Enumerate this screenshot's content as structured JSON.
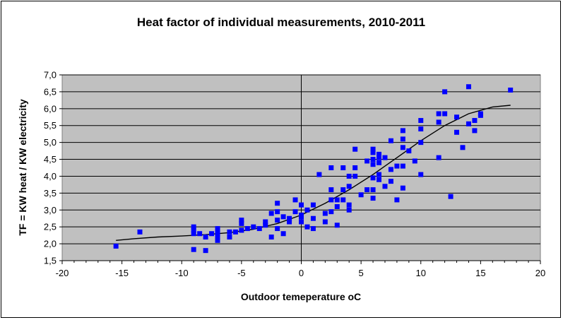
{
  "chart_data": {
    "type": "scatter",
    "title": "Heat factor of individual measurements, 2010-2011",
    "xlabel": "Outdoor temeperature oC",
    "ylabel": "TF = KW heat / KW electricity",
    "xlim": [
      -20,
      20
    ],
    "ylim": [
      1.5,
      7.0
    ],
    "x_ticks": [
      "-20",
      "-15",
      "-10",
      "-5",
      "0",
      "5",
      "10",
      "15",
      "20"
    ],
    "y_ticks": [
      "1,5",
      "2,0",
      "2,5",
      "3,0",
      "3,5",
      "4,0",
      "4,5",
      "5,0",
      "5,5",
      "6,0",
      "6,5",
      "7,0"
    ],
    "grid": true,
    "plot_background": "#c0c0c0",
    "marker_color": "#0000ff",
    "trend_color": "#000000",
    "points": [
      [
        -15.5,
        1.93
      ],
      [
        -13.5,
        2.35
      ],
      [
        -9,
        2.5
      ],
      [
        -9,
        2.4
      ],
      [
        -9,
        2.3
      ],
      [
        -9,
        1.83
      ],
      [
        -8.5,
        2.3
      ],
      [
        -8,
        2.2
      ],
      [
        -8,
        1.8
      ],
      [
        -7.5,
        2.3
      ],
      [
        -7,
        2.45
      ],
      [
        -7,
        2.4
      ],
      [
        -7,
        2.3
      ],
      [
        -7,
        2.2
      ],
      [
        -7,
        2.1
      ],
      [
        -6,
        2.35
      ],
      [
        -6,
        2.2
      ],
      [
        -5.5,
        2.35
      ],
      [
        -5,
        2.7
      ],
      [
        -5,
        2.6
      ],
      [
        -5,
        2.4
      ],
      [
        -4.5,
        2.45
      ],
      [
        -4,
        2.5
      ],
      [
        -3.5,
        2.45
      ],
      [
        -3,
        2.65
      ],
      [
        -3,
        2.55
      ],
      [
        -2.5,
        2.9
      ],
      [
        -2.5,
        2.2
      ],
      [
        -2,
        3.2
      ],
      [
        -2,
        2.95
      ],
      [
        -2,
        2.7
      ],
      [
        -2,
        2.45
      ],
      [
        -1.5,
        2.8
      ],
      [
        -1.5,
        2.3
      ],
      [
        -1,
        2.75
      ],
      [
        -1,
        2.65
      ],
      [
        -0.5,
        3.3
      ],
      [
        -0.5,
        2.95
      ],
      [
        0,
        3.15
      ],
      [
        0,
        2.85
      ],
      [
        0,
        2.8
      ],
      [
        0,
        2.65
      ],
      [
        0.5,
        3.0
      ],
      [
        0.5,
        2.5
      ],
      [
        1,
        3.15
      ],
      [
        1,
        2.75
      ],
      [
        1,
        2.45
      ],
      [
        1.5,
        4.05
      ],
      [
        2,
        2.9
      ],
      [
        2,
        2.65
      ],
      [
        2.5,
        4.25
      ],
      [
        2.5,
        3.6
      ],
      [
        2.5,
        3.3
      ],
      [
        2.5,
        2.95
      ],
      [
        3,
        3.3
      ],
      [
        3,
        3.1
      ],
      [
        3,
        2.55
      ],
      [
        3.5,
        4.25
      ],
      [
        3.5,
        3.6
      ],
      [
        3.5,
        3.3
      ],
      [
        4,
        4.0
      ],
      [
        4,
        3.7
      ],
      [
        4,
        3.15
      ],
      [
        4,
        3.0
      ],
      [
        4.5,
        4.8
      ],
      [
        4.5,
        4.25
      ],
      [
        4.5,
        4.0
      ],
      [
        5,
        3.45
      ],
      [
        5.5,
        4.45
      ],
      [
        5.5,
        3.6
      ],
      [
        6,
        4.8
      ],
      [
        6,
        4.7
      ],
      [
        6,
        4.5
      ],
      [
        6,
        4.35
      ],
      [
        6,
        3.95
      ],
      [
        6,
        3.6
      ],
      [
        6,
        3.35
      ],
      [
        6.5,
        4.65
      ],
      [
        6.5,
        4.55
      ],
      [
        6.5,
        4.4
      ],
      [
        6.5,
        4.05
      ],
      [
        6.5,
        3.9
      ],
      [
        7,
        4.55
      ],
      [
        7,
        3.7
      ],
      [
        7.5,
        5.05
      ],
      [
        7.5,
        4.2
      ],
      [
        7.5,
        3.85
      ],
      [
        8,
        4.3
      ],
      [
        8,
        3.3
      ],
      [
        8.5,
        5.35
      ],
      [
        8.5,
        5.1
      ],
      [
        8.5,
        4.85
      ],
      [
        8.5,
        4.3
      ],
      [
        8.5,
        3.65
      ],
      [
        9,
        4.75
      ],
      [
        9.5,
        4.45
      ],
      [
        10,
        5.65
      ],
      [
        10,
        5.4
      ],
      [
        10,
        5.0
      ],
      [
        10,
        4.05
      ],
      [
        11.5,
        5.85
      ],
      [
        11.5,
        5.6
      ],
      [
        11.5,
        4.55
      ],
      [
        12,
        6.5
      ],
      [
        12,
        5.85
      ],
      [
        12.5,
        3.4
      ],
      [
        13,
        5.75
      ],
      [
        13,
        5.3
      ],
      [
        13.5,
        4.85
      ],
      [
        14,
        6.65
      ],
      [
        14,
        5.55
      ],
      [
        14.5,
        5.65
      ],
      [
        14.5,
        5.35
      ],
      [
        15,
        5.85
      ],
      [
        15,
        5.8
      ],
      [
        17.5,
        6.55
      ]
    ],
    "trend": [
      [
        -15.5,
        2.1
      ],
      [
        -14,
        2.15
      ],
      [
        -12,
        2.2
      ],
      [
        -10,
        2.23
      ],
      [
        -8,
        2.27
      ],
      [
        -6,
        2.33
      ],
      [
        -4,
        2.43
      ],
      [
        -2,
        2.6
      ],
      [
        0,
        2.85
      ],
      [
        2,
        3.2
      ],
      [
        4,
        3.6
      ],
      [
        6,
        4.05
      ],
      [
        8,
        4.55
      ],
      [
        10,
        5.05
      ],
      [
        12,
        5.5
      ],
      [
        14,
        5.85
      ],
      [
        16,
        6.05
      ],
      [
        17.5,
        6.1
      ]
    ]
  }
}
